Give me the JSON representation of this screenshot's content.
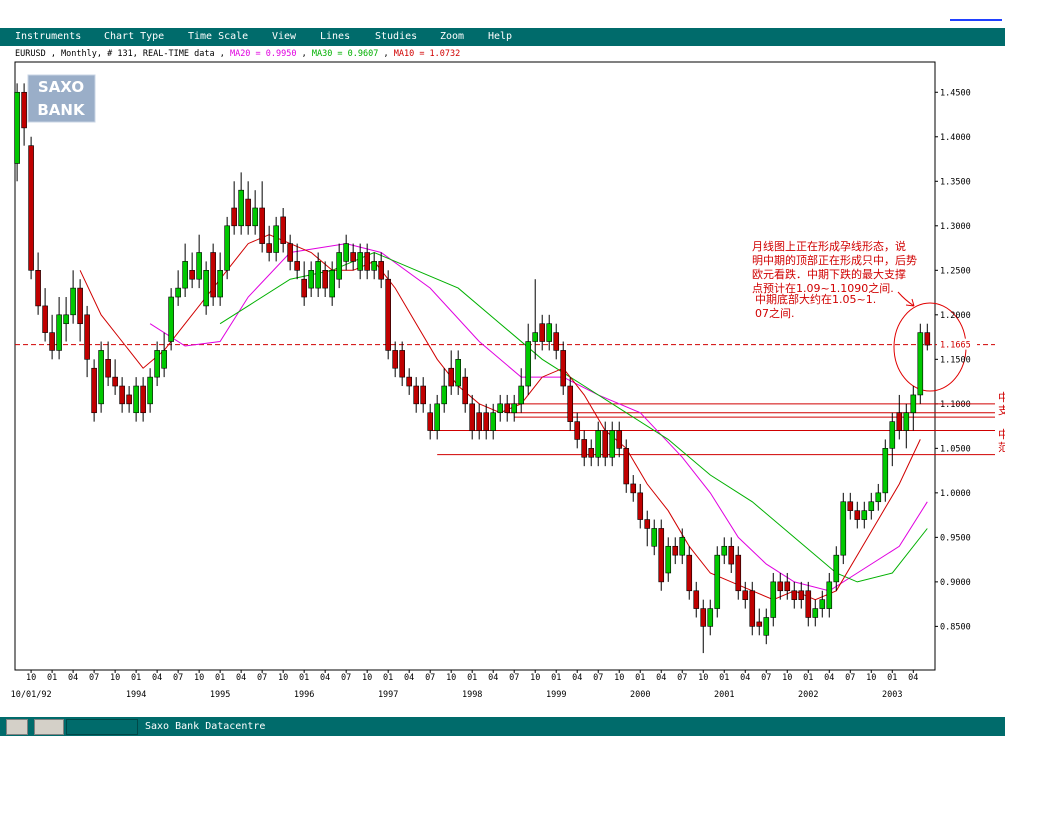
{
  "menu": [
    "Instruments",
    "Chart Type",
    "Time Scale",
    "View",
    "Lines",
    "Studies",
    "Zoom",
    "Help"
  ],
  "status_bar": "Saxo Bank Datacentre",
  "logo": [
    "SAXO",
    "BANK"
  ],
  "chart_data": {
    "type": "candlestick",
    "title": "EURUSD , Monthly, # 131, REAL-TIME data",
    "separator": " , ",
    "up_color": "#00c800",
    "down_color": "#c00000",
    "ohlc": [
      [
        1.37,
        1.46,
        1.35,
        1.45
      ],
      [
        1.45,
        1.46,
        1.39,
        1.41
      ],
      [
        1.39,
        1.4,
        1.24,
        1.25
      ],
      [
        1.25,
        1.27,
        1.2,
        1.21
      ],
      [
        1.21,
        1.23,
        1.17,
        1.18
      ],
      [
        1.18,
        1.2,
        1.15,
        1.16
      ],
      [
        1.16,
        1.22,
        1.15,
        1.2
      ],
      [
        1.19,
        1.22,
        1.17,
        1.2
      ],
      [
        1.2,
        1.25,
        1.19,
        1.23
      ],
      [
        1.23,
        1.24,
        1.17,
        1.19
      ],
      [
        1.2,
        1.21,
        1.13,
        1.15
      ],
      [
        1.14,
        1.15,
        1.08,
        1.09
      ],
      [
        1.1,
        1.17,
        1.09,
        1.16
      ],
      [
        1.15,
        1.17,
        1.12,
        1.13
      ],
      [
        1.13,
        1.15,
        1.11,
        1.12
      ],
      [
        1.12,
        1.13,
        1.09,
        1.1
      ],
      [
        1.11,
        1.12,
        1.09,
        1.1
      ],
      [
        1.09,
        1.13,
        1.08,
        1.12
      ],
      [
        1.12,
        1.13,
        1.08,
        1.09
      ],
      [
        1.1,
        1.14,
        1.09,
        1.13
      ],
      [
        1.13,
        1.17,
        1.12,
        1.16
      ],
      [
        1.14,
        1.18,
        1.13,
        1.16
      ],
      [
        1.17,
        1.23,
        1.16,
        1.22
      ],
      [
        1.22,
        1.25,
        1.21,
        1.23
      ],
      [
        1.23,
        1.28,
        1.22,
        1.26
      ],
      [
        1.25,
        1.27,
        1.23,
        1.24
      ],
      [
        1.24,
        1.29,
        1.23,
        1.27
      ],
      [
        1.21,
        1.26,
        1.2,
        1.25
      ],
      [
        1.27,
        1.28,
        1.21,
        1.22
      ],
      [
        1.22,
        1.27,
        1.21,
        1.25
      ],
      [
        1.25,
        1.31,
        1.24,
        1.3
      ],
      [
        1.32,
        1.35,
        1.29,
        1.3
      ],
      [
        1.3,
        1.36,
        1.29,
        1.34
      ],
      [
        1.33,
        1.35,
        1.29,
        1.3
      ],
      [
        1.3,
        1.34,
        1.29,
        1.32
      ],
      [
        1.32,
        1.35,
        1.27,
        1.28
      ],
      [
        1.28,
        1.3,
        1.26,
        1.27
      ],
      [
        1.27,
        1.31,
        1.26,
        1.3
      ],
      [
        1.31,
        1.32,
        1.27,
        1.28
      ],
      [
        1.28,
        1.29,
        1.25,
        1.26
      ],
      [
        1.26,
        1.28,
        1.24,
        1.25
      ],
      [
        1.24,
        1.26,
        1.21,
        1.22
      ],
      [
        1.23,
        1.26,
        1.22,
        1.25
      ],
      [
        1.23,
        1.27,
        1.22,
        1.26
      ],
      [
        1.25,
        1.26,
        1.22,
        1.23
      ],
      [
        1.22,
        1.26,
        1.21,
        1.25
      ],
      [
        1.24,
        1.28,
        1.23,
        1.27
      ],
      [
        1.26,
        1.29,
        1.25,
        1.28
      ],
      [
        1.27,
        1.28,
        1.25,
        1.26
      ],
      [
        1.25,
        1.28,
        1.24,
        1.27
      ],
      [
        1.27,
        1.28,
        1.24,
        1.25
      ],
      [
        1.25,
        1.27,
        1.24,
        1.26
      ],
      [
        1.26,
        1.27,
        1.23,
        1.24
      ],
      [
        1.24,
        1.25,
        1.15,
        1.16
      ],
      [
        1.16,
        1.17,
        1.13,
        1.14
      ],
      [
        1.16,
        1.17,
        1.12,
        1.13
      ],
      [
        1.13,
        1.14,
        1.11,
        1.12
      ],
      [
        1.12,
        1.13,
        1.09,
        1.1
      ],
      [
        1.12,
        1.13,
        1.09,
        1.1
      ],
      [
        1.09,
        1.1,
        1.06,
        1.07
      ],
      [
        1.07,
        1.11,
        1.06,
        1.1
      ],
      [
        1.1,
        1.14,
        1.09,
        1.12
      ],
      [
        1.14,
        1.16,
        1.11,
        1.12
      ],
      [
        1.12,
        1.16,
        1.11,
        1.15
      ],
      [
        1.13,
        1.14,
        1.09,
        1.1
      ],
      [
        1.1,
        1.11,
        1.06,
        1.07
      ],
      [
        1.09,
        1.1,
        1.06,
        1.07
      ],
      [
        1.09,
        1.1,
        1.06,
        1.07
      ],
      [
        1.07,
        1.1,
        1.06,
        1.09
      ],
      [
        1.09,
        1.11,
        1.08,
        1.1
      ],
      [
        1.1,
        1.11,
        1.08,
        1.09
      ],
      [
        1.09,
        1.11,
        1.08,
        1.1
      ],
      [
        1.1,
        1.14,
        1.09,
        1.12
      ],
      [
        1.12,
        1.19,
        1.11,
        1.17
      ],
      [
        1.17,
        1.24,
        1.15,
        1.18
      ],
      [
        1.19,
        1.2,
        1.16,
        1.17
      ],
      [
        1.17,
        1.2,
        1.16,
        1.19
      ],
      [
        1.18,
        1.19,
        1.15,
        1.16
      ],
      [
        1.16,
        1.17,
        1.11,
        1.12
      ],
      [
        1.12,
        1.13,
        1.07,
        1.08
      ],
      [
        1.08,
        1.09,
        1.05,
        1.06
      ],
      [
        1.06,
        1.07,
        1.03,
        1.04
      ],
      [
        1.05,
        1.06,
        1.03,
        1.04
      ],
      [
        1.04,
        1.08,
        1.03,
        1.07
      ],
      [
        1.07,
        1.08,
        1.03,
        1.04
      ],
      [
        1.04,
        1.08,
        1.03,
        1.07
      ],
      [
        1.07,
        1.08,
        1.04,
        1.05
      ],
      [
        1.05,
        1.06,
        1.0,
        1.01
      ],
      [
        1.01,
        1.02,
        0.99,
        1.0
      ],
      [
        1.0,
        1.01,
        0.96,
        0.97
      ],
      [
        0.97,
        0.98,
        0.94,
        0.96
      ],
      [
        0.94,
        0.97,
        0.93,
        0.96
      ],
      [
        0.96,
        0.97,
        0.89,
        0.9
      ],
      [
        0.91,
        0.95,
        0.9,
        0.94
      ],
      [
        0.94,
        0.95,
        0.92,
        0.93
      ],
      [
        0.93,
        0.96,
        0.92,
        0.95
      ],
      [
        0.93,
        0.94,
        0.88,
        0.89
      ],
      [
        0.89,
        0.9,
        0.86,
        0.87
      ],
      [
        0.87,
        0.88,
        0.82,
        0.85
      ],
      [
        0.85,
        0.88,
        0.84,
        0.87
      ],
      [
        0.87,
        0.94,
        0.86,
        0.93
      ],
      [
        0.93,
        0.95,
        0.92,
        0.94
      ],
      [
        0.94,
        0.95,
        0.91,
        0.92
      ],
      [
        0.93,
        0.94,
        0.88,
        0.89
      ],
      [
        0.89,
        0.9,
        0.87,
        0.88
      ],
      [
        0.89,
        0.9,
        0.84,
        0.85
      ],
      [
        0.855,
        0.87,
        0.84,
        0.85
      ],
      [
        0.84,
        0.87,
        0.83,
        0.86
      ],
      [
        0.86,
        0.91,
        0.85,
        0.9
      ],
      [
        0.9,
        0.91,
        0.88,
        0.89
      ],
      [
        0.9,
        0.91,
        0.88,
        0.89
      ],
      [
        0.89,
        0.9,
        0.87,
        0.88
      ],
      [
        0.89,
        0.9,
        0.87,
        0.88
      ],
      [
        0.89,
        0.9,
        0.85,
        0.86
      ],
      [
        0.86,
        0.88,
        0.85,
        0.87
      ],
      [
        0.87,
        0.89,
        0.86,
        0.88
      ],
      [
        0.87,
        0.91,
        0.86,
        0.9
      ],
      [
        0.9,
        0.94,
        0.89,
        0.93
      ],
      [
        0.93,
        1.0,
        0.92,
        0.99
      ],
      [
        0.99,
        1.0,
        0.97,
        0.98
      ],
      [
        0.98,
        0.99,
        0.96,
        0.97
      ],
      [
        0.97,
        0.99,
        0.96,
        0.98
      ],
      [
        0.98,
        1.0,
        0.97,
        0.99
      ],
      [
        0.99,
        1.01,
        0.98,
        1.0
      ],
      [
        1.0,
        1.06,
        0.99,
        1.05
      ],
      [
        1.05,
        1.09,
        1.03,
        1.08
      ],
      [
        1.09,
        1.11,
        1.06,
        1.07
      ],
      [
        1.07,
        1.1,
        1.05,
        1.09
      ],
      [
        1.09,
        1.12,
        1.07,
        1.11
      ],
      [
        1.11,
        1.19,
        1.1,
        1.18
      ],
      [
        1.18,
        1.19,
        1.16,
        1.166
      ]
    ],
    "series": [
      {
        "name": "MA20 = 0.9950",
        "color": "#e000e0",
        "x": [
          19,
          24,
          29,
          33,
          39,
          47,
          52,
          59,
          66,
          72,
          78,
          83,
          89,
          95,
          99,
          103,
          107,
          111,
          116,
          120,
          126,
          130
        ],
        "values": [
          1.19,
          1.165,
          1.17,
          1.22,
          1.27,
          1.28,
          1.27,
          1.23,
          1.17,
          1.13,
          1.13,
          1.11,
          1.09,
          1.04,
          1.0,
          0.95,
          0.92,
          0.9,
          0.89,
          0.91,
          0.94,
          0.99
        ]
      },
      {
        "name": "MA30 = 0.9607",
        "color": "#00b000",
        "x": [
          29,
          33,
          39,
          45,
          51,
          57,
          63,
          69,
          75,
          81,
          87,
          93,
          99,
          105,
          111,
          117,
          120,
          125,
          130
        ],
        "values": [
          1.19,
          1.21,
          1.24,
          1.25,
          1.27,
          1.25,
          1.23,
          1.19,
          1.15,
          1.12,
          1.09,
          1.06,
          1.02,
          0.99,
          0.95,
          0.91,
          0.9,
          0.91,
          0.96
        ]
      },
      {
        "name": "MA10 = 1.0732",
        "color": "#d00000",
        "x": [
          9,
          12,
          15,
          18,
          21,
          24,
          27,
          30,
          33,
          36,
          39,
          42,
          45,
          48,
          51,
          54,
          57,
          60,
          63,
          66,
          69,
          72,
          75,
          78,
          81,
          84,
          87,
          90,
          93,
          96,
          99,
          102,
          105,
          108,
          111,
          114,
          117,
          120,
          123,
          126,
          129
        ],
        "values": [
          1.25,
          1.2,
          1.17,
          1.14,
          1.16,
          1.19,
          1.22,
          1.25,
          1.28,
          1.29,
          1.28,
          1.27,
          1.25,
          1.25,
          1.26,
          1.23,
          1.19,
          1.15,
          1.12,
          1.1,
          1.09,
          1.1,
          1.13,
          1.14,
          1.11,
          1.07,
          1.05,
          1.01,
          0.98,
          0.94,
          0.91,
          0.9,
          0.89,
          0.88,
          0.89,
          0.88,
          0.89,
          0.93,
          0.97,
          1.01,
          1.06
        ]
      }
    ],
    "levels": [
      {
        "value": 1.1665,
        "from": -0.3,
        "dashed": true,
        "label": "1.1665"
      },
      {
        "value": 1.1,
        "from": 70,
        "dashed": false
      },
      {
        "value": 1.09,
        "from": 70,
        "dashed": false
      },
      {
        "value": 1.085,
        "from": 71,
        "dashed": false
      },
      {
        "value": 1.07,
        "from": 59,
        "dashed": false
      },
      {
        "value": 1.043,
        "from": 60,
        "dashed": false
      }
    ],
    "xlim": [
      -0.3,
      131.1
    ],
    "ylim": [
      0.801,
      1.484
    ],
    "yticks": [
      {
        "value": 0.85,
        "label": "0.8500"
      },
      {
        "value": 0.9,
        "label": "0.9000"
      },
      {
        "value": 0.95,
        "label": "0.9500"
      },
      {
        "value": 1.0,
        "label": "1.0000"
      },
      {
        "value": 1.05,
        "label": "1.0500"
      },
      {
        "value": 1.1,
        "label": "1.1000"
      },
      {
        "value": 1.15,
        "label": "1.1500"
      },
      {
        "value": 1.2,
        "label": "1.2000"
      },
      {
        "value": 1.25,
        "label": "1.2500"
      },
      {
        "value": 1.3,
        "label": "1.3000"
      },
      {
        "value": 1.35,
        "label": "1.3500"
      },
      {
        "value": 1.4,
        "label": "1.4000"
      },
      {
        "value": 1.45,
        "label": "1.4500"
      }
    ],
    "xticks": [
      {
        "value": 2,
        "label": "10"
      },
      {
        "value": 5,
        "label": "01"
      },
      {
        "value": 8,
        "label": "04"
      },
      {
        "value": 11,
        "label": "07"
      },
      {
        "value": 14,
        "label": "10"
      },
      {
        "value": 17,
        "label": "01"
      },
      {
        "value": 20,
        "label": "04"
      },
      {
        "value": 23,
        "label": "07"
      },
      {
        "value": 26,
        "label": "10"
      },
      {
        "value": 29,
        "label": "01"
      },
      {
        "value": 32,
        "label": "04"
      },
      {
        "value": 35,
        "label": "07"
      },
      {
        "value": 38,
        "label": "10"
      },
      {
        "value": 41,
        "label": "01"
      },
      {
        "value": 44,
        "label": "04"
      },
      {
        "value": 47,
        "label": "07"
      },
      {
        "value": 50,
        "label": "10"
      },
      {
        "value": 53,
        "label": "01"
      },
      {
        "value": 56,
        "label": "04"
      },
      {
        "value": 59,
        "label": "07"
      },
      {
        "value": 62,
        "label": "10"
      },
      {
        "value": 65,
        "label": "01"
      },
      {
        "value": 68,
        "label": "04"
      },
      {
        "value": 71,
        "label": "07"
      },
      {
        "value": 74,
        "label": "10"
      },
      {
        "value": 77,
        "label": "01"
      },
      {
        "value": 80,
        "label": "04"
      },
      {
        "value": 83,
        "label": "07"
      },
      {
        "value": 86,
        "label": "10"
      },
      {
        "value": 89,
        "label": "01"
      },
      {
        "value": 92,
        "label": "04"
      },
      {
        "value": 95,
        "label": "07"
      },
      {
        "value": 98,
        "label": "10"
      },
      {
        "value": 101,
        "label": "01"
      },
      {
        "value": 104,
        "label": "04"
      },
      {
        "value": 107,
        "label": "07"
      },
      {
        "value": 110,
        "label": "10"
      },
      {
        "value": 113,
        "label": "01"
      },
      {
        "value": 116,
        "label": "04"
      },
      {
        "value": 119,
        "label": "07"
      },
      {
        "value": 122,
        "label": "10"
      },
      {
        "value": 125,
        "label": "01"
      },
      {
        "value": 128,
        "label": "04"
      }
    ],
    "year_labels": [
      {
        "value": 2,
        "label": "10/01/92"
      },
      {
        "value": 17,
        "label": "1994"
      },
      {
        "value": 29,
        "label": "1995"
      },
      {
        "value": 41,
        "label": "1996"
      },
      {
        "value": 53,
        "label": "1997"
      },
      {
        "value": 65,
        "label": "1998"
      },
      {
        "value": 77,
        "label": "1999"
      },
      {
        "value": 89,
        "label": "2000"
      },
      {
        "value": 101,
        "label": "2001"
      },
      {
        "value": 113,
        "label": "2002"
      },
      {
        "value": 125,
        "label": "2003"
      }
    ],
    "annotations": {
      "note": [
        "月线图上正在形成孕线形态，说",
        "明中期的顶部正在形成只中，后势",
        "欧元看跌．中期下跌的最大支撑",
        "点预计在1.09~1.1090之间."
      ],
      "note2": [
        "中期底部大约在1.05~1.",
        "07之间."
      ],
      "support": [
        "中期下跌",
        "支撑位"
      ],
      "bottom": [
        "中期底部",
        "范围"
      ]
    }
  }
}
